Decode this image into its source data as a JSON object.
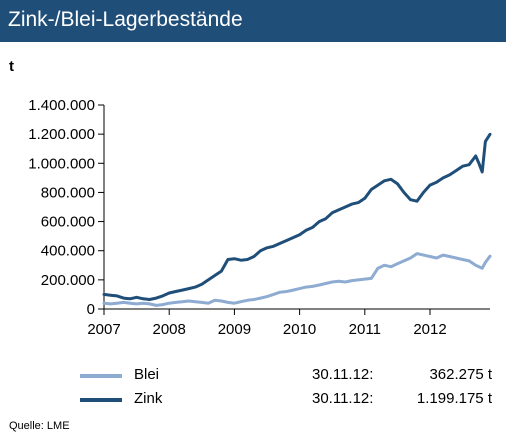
{
  "title": "Zink-/Blei-Lagerbestände",
  "unit_label": "t",
  "source": "Quelle:  LME",
  "colors": {
    "title_bg": "#1f4e79",
    "zink": "#1f4e79",
    "blei": "#8eabd2",
    "axis": "#000000"
  },
  "legend": [
    {
      "name": "Blei",
      "date": "30.11.12:",
      "value": "362.275 t"
    },
    {
      "name": "Zink",
      "date": "30.11.12:",
      "value": "1.199.175 t"
    }
  ],
  "chart_data": {
    "type": "line",
    "title": "",
    "xlabel": "",
    "ylabel": "t",
    "xlim": [
      2007.0,
      2012.92
    ],
    "ylim": [
      0,
      1400000
    ],
    "x_ticks": [
      "2007",
      "2008",
      "2009",
      "2010",
      "2011",
      "2012"
    ],
    "y_ticks": [
      "0",
      "200.000",
      "400.000",
      "600.000",
      "800.000",
      "1.000.000",
      "1.200.000",
      "1.400.000"
    ],
    "grid": false,
    "legend_position": "bottom",
    "series": [
      {
        "name": "Blei",
        "x": [
          2007.0,
          2007.1,
          2007.2,
          2007.3,
          2007.4,
          2007.5,
          2007.6,
          2007.7,
          2007.8,
          2007.9,
          2008.0,
          2008.1,
          2008.2,
          2008.3,
          2008.4,
          2008.5,
          2008.6,
          2008.7,
          2008.8,
          2008.9,
          2009.0,
          2009.1,
          2009.2,
          2009.3,
          2009.4,
          2009.5,
          2009.6,
          2009.7,
          2009.8,
          2009.9,
          2010.0,
          2010.1,
          2010.2,
          2010.3,
          2010.4,
          2010.5,
          2010.6,
          2010.7,
          2010.8,
          2010.9,
          2011.0,
          2011.1,
          2011.2,
          2011.3,
          2011.4,
          2011.5,
          2011.6,
          2011.7,
          2011.8,
          2011.9,
          2012.0,
          2012.1,
          2012.2,
          2012.3,
          2012.4,
          2012.5,
          2012.6,
          2012.7,
          2012.8,
          2012.85,
          2012.92
        ],
        "values": [
          40000,
          35000,
          40000,
          45000,
          40000,
          35000,
          40000,
          35000,
          25000,
          30000,
          40000,
          45000,
          50000,
          55000,
          50000,
          45000,
          40000,
          60000,
          55000,
          45000,
          40000,
          50000,
          60000,
          65000,
          75000,
          85000,
          100000,
          115000,
          120000,
          130000,
          140000,
          150000,
          155000,
          165000,
          175000,
          185000,
          190000,
          185000,
          195000,
          200000,
          205000,
          210000,
          280000,
          300000,
          290000,
          310000,
          330000,
          350000,
          380000,
          370000,
          360000,
          350000,
          370000,
          360000,
          350000,
          340000,
          330000,
          300000,
          280000,
          320000,
          362275
        ]
      },
      {
        "name": "Zink",
        "x": [
          2007.0,
          2007.1,
          2007.2,
          2007.3,
          2007.4,
          2007.5,
          2007.6,
          2007.7,
          2007.8,
          2007.9,
          2008.0,
          2008.1,
          2008.2,
          2008.3,
          2008.4,
          2008.5,
          2008.6,
          2008.7,
          2008.8,
          2008.9,
          2009.0,
          2009.1,
          2009.2,
          2009.3,
          2009.4,
          2009.5,
          2009.6,
          2009.7,
          2009.8,
          2009.9,
          2010.0,
          2010.1,
          2010.2,
          2010.3,
          2010.4,
          2010.5,
          2010.6,
          2010.7,
          2010.8,
          2010.9,
          2011.0,
          2011.1,
          2011.2,
          2011.3,
          2011.4,
          2011.5,
          2011.6,
          2011.7,
          2011.8,
          2011.9,
          2012.0,
          2012.1,
          2012.2,
          2012.3,
          2012.4,
          2012.5,
          2012.6,
          2012.7,
          2012.75,
          2012.8,
          2012.85,
          2012.92
        ],
        "values": [
          100000,
          95000,
          90000,
          75000,
          70000,
          80000,
          70000,
          65000,
          75000,
          90000,
          110000,
          120000,
          130000,
          140000,
          150000,
          170000,
          200000,
          230000,
          260000,
          340000,
          345000,
          335000,
          340000,
          360000,
          400000,
          420000,
          430000,
          450000,
          470000,
          490000,
          510000,
          540000,
          560000,
          600000,
          620000,
          660000,
          680000,
          700000,
          720000,
          730000,
          760000,
          820000,
          850000,
          880000,
          890000,
          860000,
          800000,
          750000,
          740000,
          800000,
          850000,
          870000,
          900000,
          920000,
          950000,
          980000,
          990000,
          1050000,
          1000000,
          940000,
          1150000,
          1199175
        ]
      }
    ]
  }
}
